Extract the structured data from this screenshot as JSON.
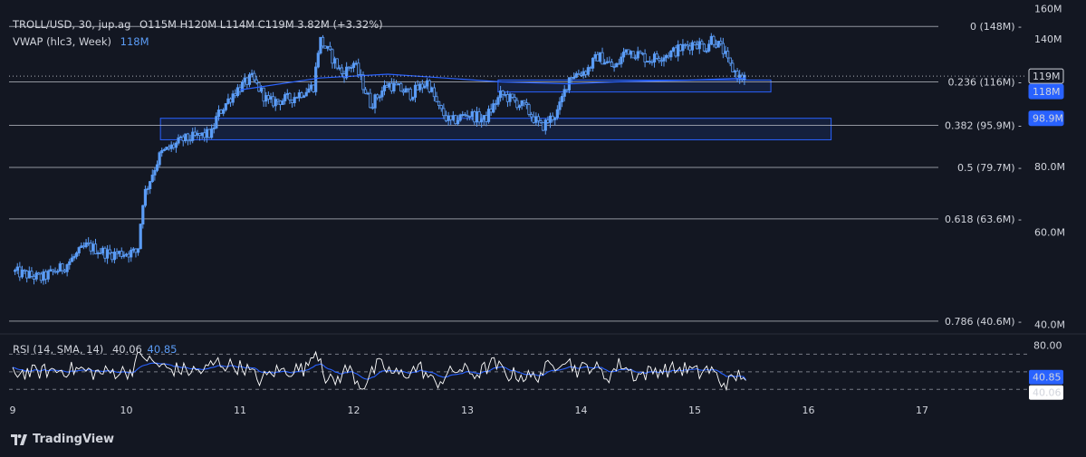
{
  "legend": {
    "symbol": "TROLL/USD, 30, jup.ag",
    "ohlc": "O115M  H120M  L114M  C119M  3.82M (+3.32%)",
    "vwap_label": "VWAP (hlc3, Week)",
    "vwap_value": "118M",
    "rsi_label": "RSI (14, SMA, 14)",
    "rsi_value": "40.06",
    "rsi_sma_value": "40.85"
  },
  "branding": {
    "text": "TradingView"
  },
  "colors": {
    "background": "#131722",
    "candle": "#5b9cf6",
    "vwap": "#2962ff",
    "zone_border": "#2962ff",
    "zone_fill": "rgba(41,98,255,0.12)",
    "fib_line": "#b2b5be",
    "rsi_line": "#ffffff",
    "rsi_sma": "#2962ff",
    "text": "#d1d4dc"
  },
  "chart_data": [
    {
      "type": "candlestick",
      "x_ticks": [
        "9",
        "10",
        "11",
        "12",
        "13",
        "14",
        "15",
        "16",
        "17"
      ],
      "y_ticks": [
        "160M",
        "140M",
        "119M",
        "118M",
        "98.9M",
        "80.0M",
        "60.0M",
        "40.0M"
      ],
      "ylim": [
        39,
        161
      ],
      "price_badges": [
        {
          "label": "119M",
          "value": 119,
          "style": "outline"
        },
        {
          "label": "118M",
          "value": 118,
          "style": "filled"
        },
        {
          "label": "98.9M",
          "value": 98.9,
          "style": "filled"
        }
      ],
      "fib_levels": [
        {
          "ratio": "0",
          "label": "0 (148M)",
          "value": 148
        },
        {
          "ratio": "0.236",
          "label": "0.236 (116M)",
          "value": 116
        },
        {
          "ratio": "0.382",
          "label": "0.382 (95.9M)",
          "value": 95.9
        },
        {
          "ratio": "0.5",
          "label": "0.5 (79.7M)",
          "value": 79.7
        },
        {
          "ratio": "0.618",
          "label": "0.618 (63.6M)",
          "value": 63.6
        },
        {
          "ratio": "0.786",
          "label": "0.786 (40.6M)",
          "value": 40.6
        }
      ],
      "zones": [
        {
          "from_day": 10.3,
          "to_day": 16.2,
          "top": 98.9,
          "bottom": 90.0
        },
        {
          "from_day": 13.27,
          "to_day": 15.67,
          "top": 117.0,
          "bottom": 111.0
        }
      ],
      "last_close": 119,
      "keypoints": [
        [
          9.0,
          50.5
        ],
        [
          9.25,
          49.0
        ],
        [
          9.45,
          51.5
        ],
        [
          9.65,
          56.5
        ],
        [
          9.85,
          54.5
        ],
        [
          10.1,
          55.0
        ],
        [
          10.15,
          70.0
        ],
        [
          10.3,
          84.5
        ],
        [
          10.5,
          90.0
        ],
        [
          10.75,
          92.5
        ],
        [
          10.8,
          100.0
        ],
        [
          10.95,
          111.0
        ],
        [
          11.1,
          118.0
        ],
        [
          11.25,
          106.0
        ],
        [
          11.45,
          108.0
        ],
        [
          11.65,
          114.0
        ],
        [
          11.7,
          140.0
        ],
        [
          11.8,
          130.0
        ],
        [
          11.9,
          120.0
        ],
        [
          12.0,
          126.0
        ],
        [
          12.15,
          105.0
        ],
        [
          12.3,
          115.0
        ],
        [
          12.5,
          110.0
        ],
        [
          12.65,
          116.0
        ],
        [
          12.75,
          103.0
        ],
        [
          12.85,
          97.0
        ],
        [
          13.0,
          101.0
        ],
        [
          13.15,
          98.0
        ],
        [
          13.3,
          110.0
        ],
        [
          13.5,
          104.0
        ],
        [
          13.65,
          95.0
        ],
        [
          13.8,
          102.0
        ],
        [
          13.9,
          119.0
        ],
        [
          14.05,
          122.0
        ],
        [
          14.15,
          130.0
        ],
        [
          14.3,
          123.0
        ],
        [
          14.4,
          134.0
        ],
        [
          14.6,
          128.0
        ],
        [
          14.8,
          132.0
        ],
        [
          15.0,
          138.0
        ],
        [
          15.1,
          135.0
        ],
        [
          15.15,
          141.0
        ],
        [
          15.25,
          133.0
        ],
        [
          15.3,
          125.0
        ],
        [
          15.4,
          118.0
        ],
        [
          15.45,
          119.0
        ]
      ],
      "vwap_points": [
        [
          11.0,
          112.0
        ],
        [
          11.7,
          118.0
        ],
        [
          12.3,
          120.0
        ],
        [
          12.8,
          118.0
        ],
        [
          13.3,
          116.0
        ],
        [
          13.9,
          115.0
        ],
        [
          14.3,
          116.0
        ],
        [
          15.0,
          117.0
        ],
        [
          15.45,
          118.0
        ]
      ]
    },
    {
      "type": "line",
      "title": "RSI (14, SMA, 14)",
      "ylim": [
        20,
        90
      ],
      "y_ticks": [
        "80.00",
        "40.85",
        "40.06"
      ],
      "bands": [
        70,
        50,
        30
      ],
      "series": [
        {
          "name": "RSI",
          "last": 40.06
        },
        {
          "name": "SMA",
          "last": 40.85
        }
      ]
    }
  ]
}
